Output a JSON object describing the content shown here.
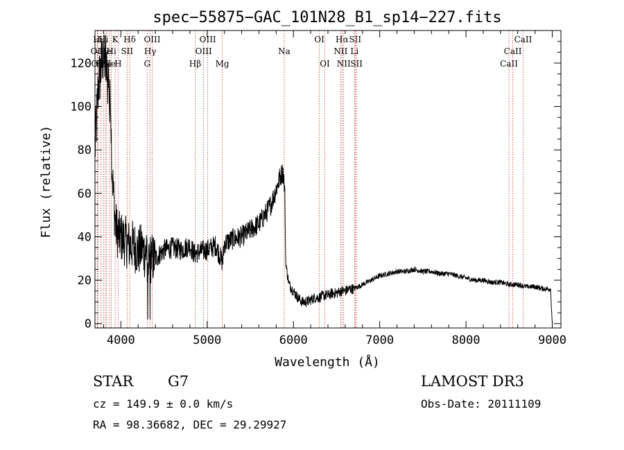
{
  "chart_data": {
    "type": "line",
    "title": "spec−55875−GAC_101N28_B1_sp14−227.fits",
    "xlabel": "Wavelength (Å)",
    "ylabel": "Flux (relative)",
    "xlim": [
      3700,
      9100
    ],
    "ylim": [
      -2,
      135
    ],
    "xticks": [
      4000,
      5000,
      6000,
      7000,
      8000,
      9000
    ],
    "yticks": [
      0,
      20,
      40,
      60,
      80,
      100,
      120
    ],
    "series": [
      {
        "name": "flux",
        "x": [
          3700,
          3720,
          3740,
          3760,
          3780,
          3800,
          3810,
          3820,
          3830,
          3840,
          3850,
          3860,
          3870,
          3880,
          3890,
          3900,
          3920,
          3940,
          3960,
          3980,
          4000,
          4050,
          4100,
          4150,
          4200,
          4250,
          4300,
          4350,
          4400,
          4500,
          4600,
          4700,
          4800,
          4850,
          4900,
          5000,
          5100,
          5180,
          5200,
          5300,
          5400,
          5500,
          5600,
          5700,
          5750,
          5800,
          5850,
          5880,
          5890,
          5900,
          5910,
          5920,
          5950,
          6000,
          6050,
          6100,
          6150,
          6200,
          6250,
          6300,
          6350,
          6400,
          6450,
          6500,
          6550,
          6600,
          6650,
          6700,
          6750,
          6800,
          6900,
          7000,
          7100,
          7200,
          7300,
          7400,
          7500,
          7600,
          7700,
          7800,
          7900,
          8000,
          8100,
          8200,
          8300,
          8400,
          8500,
          8600,
          8700,
          8800,
          8900,
          8980,
          9000
        ],
        "y": [
          80,
          95,
          110,
          115,
          120,
          125,
          118,
          128,
          112,
          122,
          108,
          118,
          95,
          110,
          85,
          70,
          55,
          45,
          42,
          40,
          40,
          38,
          36,
          36,
          33,
          35,
          30,
          30,
          30,
          34,
          35,
          34,
          36,
          32,
          33,
          34,
          36,
          28,
          37,
          39,
          40,
          43,
          46,
          52,
          56,
          62,
          68,
          70,
          66,
          60,
          30,
          25,
          18,
          15,
          12,
          10,
          10,
          11,
          12,
          12,
          13,
          13,
          14,
          14,
          15,
          15,
          16,
          16,
          17,
          18,
          20,
          22,
          23,
          24,
          24,
          25,
          24,
          24,
          23,
          23,
          22,
          21,
          20,
          20,
          19,
          19,
          18,
          18,
          17,
          17,
          16,
          16,
          0
        ]
      }
    ],
    "lines": [
      {
        "name": "Hi",
        "wl": 3734,
        "row": 1
      },
      {
        "name": "OII",
        "wl": 3727,
        "row": 2
      },
      {
        "name": "OII",
        "wl": 3732,
        "row": 3
      },
      {
        "name": "Hi",
        "wl": 3771,
        "row": 3
      },
      {
        "name": "He",
        "wl": 3820,
        "row": 2
      },
      {
        "name": "Hi",
        "wl": 3798,
        "row": 1
      },
      {
        "name": "Hi",
        "wl": 3835,
        "row": 3
      },
      {
        "name": "Ne",
        "wl": 3869,
        "row": 3
      },
      {
        "name": "K",
        "wl": 3934,
        "row": 1
      },
      {
        "name": "Hi",
        "wl": 3889,
        "row": 2
      },
      {
        "name": "H",
        "wl": 3968,
        "row": 3
      },
      {
        "name": "SII",
        "wl": 4072,
        "row": 2
      },
      {
        "name": "Hδ",
        "wl": 4102,
        "row": 1
      },
      {
        "name": "OIII",
        "wl": 4363,
        "row": 1
      },
      {
        "name": "Hγ",
        "wl": 4340,
        "row": 2
      },
      {
        "name": "G",
        "wl": 4305,
        "row": 3
      },
      {
        "name": "Hβ",
        "wl": 4861,
        "row": 3
      },
      {
        "name": "OIII",
        "wl": 4959,
        "row": 2
      },
      {
        "name": "OIII",
        "wl": 5007,
        "row": 1
      },
      {
        "name": "Mg",
        "wl": 5175,
        "row": 3
      },
      {
        "name": "Na",
        "wl": 5893,
        "row": 2
      },
      {
        "name": "OI",
        "wl": 6300,
        "row": 1
      },
      {
        "name": "OI",
        "wl": 6364,
        "row": 3
      },
      {
        "name": "NII",
        "wl": 6548,
        "row": 2
      },
      {
        "name": "Hα",
        "wl": 6563,
        "row": 1
      },
      {
        "name": "NII",
        "wl": 6583,
        "row": 3
      },
      {
        "name": "SII",
        "wl": 6716,
        "row": 1
      },
      {
        "name": "Li",
        "wl": 6708,
        "row": 2
      },
      {
        "name": "SII",
        "wl": 6731,
        "row": 3
      },
      {
        "name": "CaII",
        "wl": 8542,
        "row": 2
      },
      {
        "name": "CaII",
        "wl": 8498,
        "row": 3
      },
      {
        "name": "CaII",
        "wl": 8662,
        "row": 1
      }
    ],
    "colors": {
      "trace": "#000000",
      "marker": "#c0392b",
      "axes": "#000000"
    }
  },
  "info": {
    "type_label": "STAR",
    "subclass": "G7",
    "redshift": "cz = 149.9 ± 0.0 km/s",
    "coords": "RA =  98.36682, DEC =  29.29927",
    "survey": "LAMOST DR3",
    "obs_date": "Obs-Date: 20111109"
  }
}
